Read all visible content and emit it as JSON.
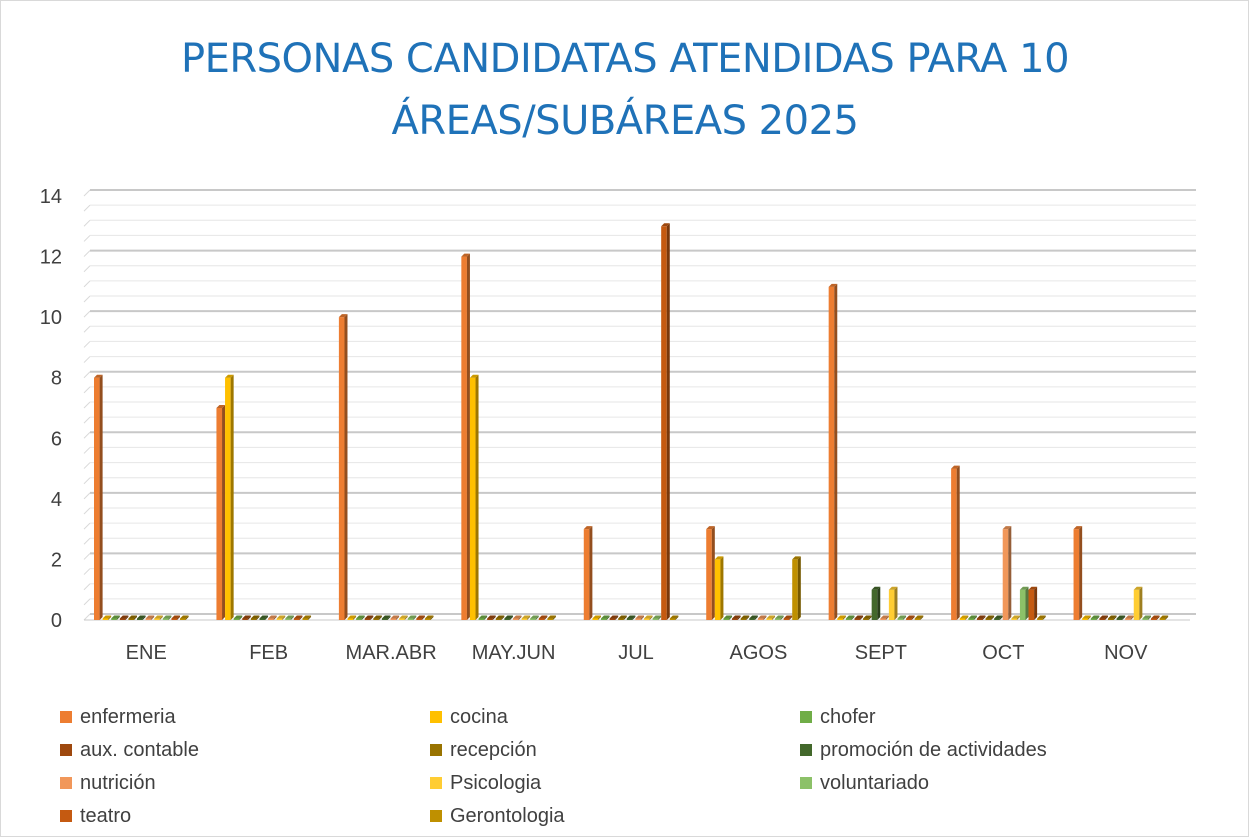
{
  "chart_data": {
    "type": "bar",
    "title_lines": [
      "PERSONAS CANDIDATAS ATENDIDAS PARA 10",
      "ÁREAS/SUBÁREAS 2025"
    ],
    "xlabel": "",
    "ylabel": "",
    "ylim": [
      0,
      14
    ],
    "yticks": [
      "0",
      "2",
      "4",
      "6",
      "8",
      "10",
      "12",
      "14"
    ],
    "grid": true,
    "legend_position": "bottom",
    "categories": [
      "ENE",
      "FEB",
      "MAR.ABR",
      "MAY.JUN",
      "JUL",
      "AGOS",
      "SEPT",
      "OCT",
      "NOV"
    ],
    "series": [
      {
        "name": "enfermeria",
        "color": "#ed7d31",
        "values": [
          8,
          7,
          10,
          12,
          3,
          3,
          11,
          5,
          3
        ]
      },
      {
        "name": "cocina",
        "color": "#ffc000",
        "values": [
          0,
          8,
          0,
          8,
          0,
          2,
          0,
          0,
          0
        ]
      },
      {
        "name": "chofer",
        "color": "#70ad47",
        "values": [
          0,
          0,
          0,
          0,
          0,
          0,
          0,
          0,
          0
        ]
      },
      {
        "name": "aux. contable",
        "color": "#9e480e",
        "values": [
          0,
          0,
          0,
          0,
          0,
          0,
          0,
          0,
          0
        ]
      },
      {
        "name": "recepción",
        "color": "#997300",
        "values": [
          0,
          0,
          0,
          0,
          0,
          0,
          0,
          0,
          0
        ]
      },
      {
        "name": "promoción de actividades",
        "color": "#43682b",
        "values": [
          0,
          0,
          0,
          0,
          0,
          0,
          1,
          0,
          0
        ]
      },
      {
        "name": "nutrición",
        "color": "#f1975a",
        "values": [
          0,
          0,
          0,
          0,
          0,
          0,
          0,
          3,
          0
        ]
      },
      {
        "name": "Psicologia",
        "color": "#ffcd33",
        "values": [
          0,
          0,
          0,
          0,
          0,
          0,
          1,
          0,
          1
        ]
      },
      {
        "name": "voluntariado",
        "color": "#8cc168",
        "values": [
          0,
          0,
          0,
          0,
          0,
          0,
          0,
          1,
          0
        ]
      },
      {
        "name": "teatro",
        "color": "#c55a11",
        "values": [
          0,
          0,
          0,
          0,
          13,
          0,
          0,
          1,
          0
        ]
      },
      {
        "name": "Gerontologia",
        "color": "#bf9000",
        "values": [
          0,
          0,
          0,
          0,
          0,
          2,
          0,
          0,
          0
        ]
      }
    ]
  }
}
